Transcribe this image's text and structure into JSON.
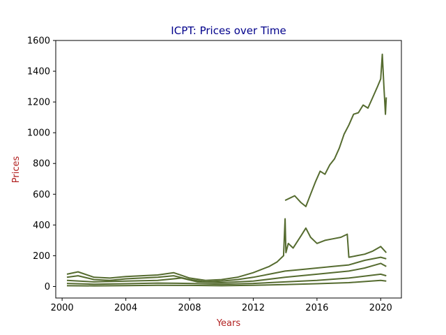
{
  "chart_data": {
    "type": "line",
    "title": "ICPT: Prices over Time",
    "xlabel": "Years",
    "ylabel": "Prices",
    "xlim": [
      1999.6,
      2021.3
    ],
    "ylim": [
      -75,
      1600
    ],
    "xticks": [
      2000,
      2004,
      2008,
      2012,
      2016,
      2020
    ],
    "yticks": [
      0,
      200,
      400,
      600,
      800,
      1000,
      1200,
      1400,
      1600
    ],
    "grid": false,
    "legend": "none",
    "colors": {
      "series": "#556b2f",
      "title": "#00008b",
      "axis_label": "#b22222",
      "axis": "#000000"
    },
    "series": [
      {
        "x": [
          2014.0,
          2014.3,
          2014.6,
          2015.0,
          2015.3,
          2015.6,
          2015.9,
          2016.2,
          2016.5,
          2016.8,
          2017.1,
          2017.4,
          2017.7,
          2018.0,
          2018.3,
          2018.6,
          2018.9,
          2019.2,
          2019.5,
          2019.8,
          2020.0,
          2020.1,
          2020.2,
          2020.3,
          2020.35
        ],
        "values": [
          560,
          575,
          590,
          545,
          520,
          600,
          680,
          750,
          730,
          790,
          830,
          900,
          990,
          1050,
          1120,
          1130,
          1180,
          1160,
          1230,
          1300,
          1350,
          1510,
          1300,
          1120,
          1230
        ]
      },
      {
        "x": [
          2000.3,
          2001.0,
          2002.0,
          2003.0,
          2004.0,
          2005.0,
          2006.0,
          2007.0,
          2008.0,
          2009.0,
          2010.0,
          2011.0,
          2012.0,
          2013.0,
          2013.5,
          2013.9,
          2014.0,
          2014.05,
          2014.2,
          2014.5,
          2015.0,
          2015.3,
          2015.6,
          2016.0,
          2016.5,
          2017.0,
          2017.5,
          2017.9,
          2018.0,
          2018.5,
          2019.0,
          2019.5,
          2020.0,
          2020.35
        ],
        "values": [
          80,
          95,
          60,
          55,
          65,
          70,
          75,
          90,
          55,
          40,
          45,
          60,
          90,
          130,
          160,
          200,
          440,
          220,
          280,
          250,
          330,
          380,
          320,
          280,
          300,
          310,
          320,
          340,
          190,
          200,
          210,
          230,
          260,
          220
        ]
      },
      {
        "x": [
          2000.3,
          2001.0,
          2002.0,
          2003.0,
          2004.0,
          2005.0,
          2006.0,
          2007.0,
          2008.0,
          2009.0,
          2010.0,
          2011.0,
          2012.0,
          2013.0,
          2014.0,
          2015.0,
          2016.0,
          2017.0,
          2018.0,
          2019.0,
          2020.0,
          2020.35
        ],
        "values": [
          60,
          70,
          45,
          40,
          50,
          55,
          60,
          70,
          45,
          30,
          35,
          45,
          60,
          80,
          100,
          110,
          120,
          130,
          140,
          170,
          190,
          180
        ]
      },
      {
        "x": [
          2000.3,
          2002.0,
          2004.0,
          2006.0,
          2007.5,
          2008.5,
          2010.0,
          2012.0,
          2014.0,
          2016.0,
          2018.0,
          2019.0,
          2020.0,
          2020.35
        ],
        "values": [
          40,
          30,
          35,
          40,
          55,
          30,
          25,
          35,
          60,
          80,
          100,
          120,
          150,
          130
        ]
      },
      {
        "x": [
          2000.3,
          2002.0,
          2004.0,
          2006.0,
          2008.0,
          2010.0,
          2012.0,
          2014.0,
          2016.0,
          2018.0,
          2020.0,
          2020.35
        ],
        "values": [
          20,
          15,
          18,
          22,
          20,
          15,
          20,
          30,
          40,
          55,
          80,
          70
        ]
      },
      {
        "x": [
          2000.3,
          2002.0,
          2004.0,
          2006.0,
          2008.0,
          2010.0,
          2012.0,
          2014.0,
          2016.0,
          2018.0,
          2020.0,
          2020.35
        ],
        "values": [
          5,
          4,
          6,
          8,
          7,
          5,
          8,
          12,
          18,
          25,
          40,
          35
        ]
      }
    ]
  }
}
